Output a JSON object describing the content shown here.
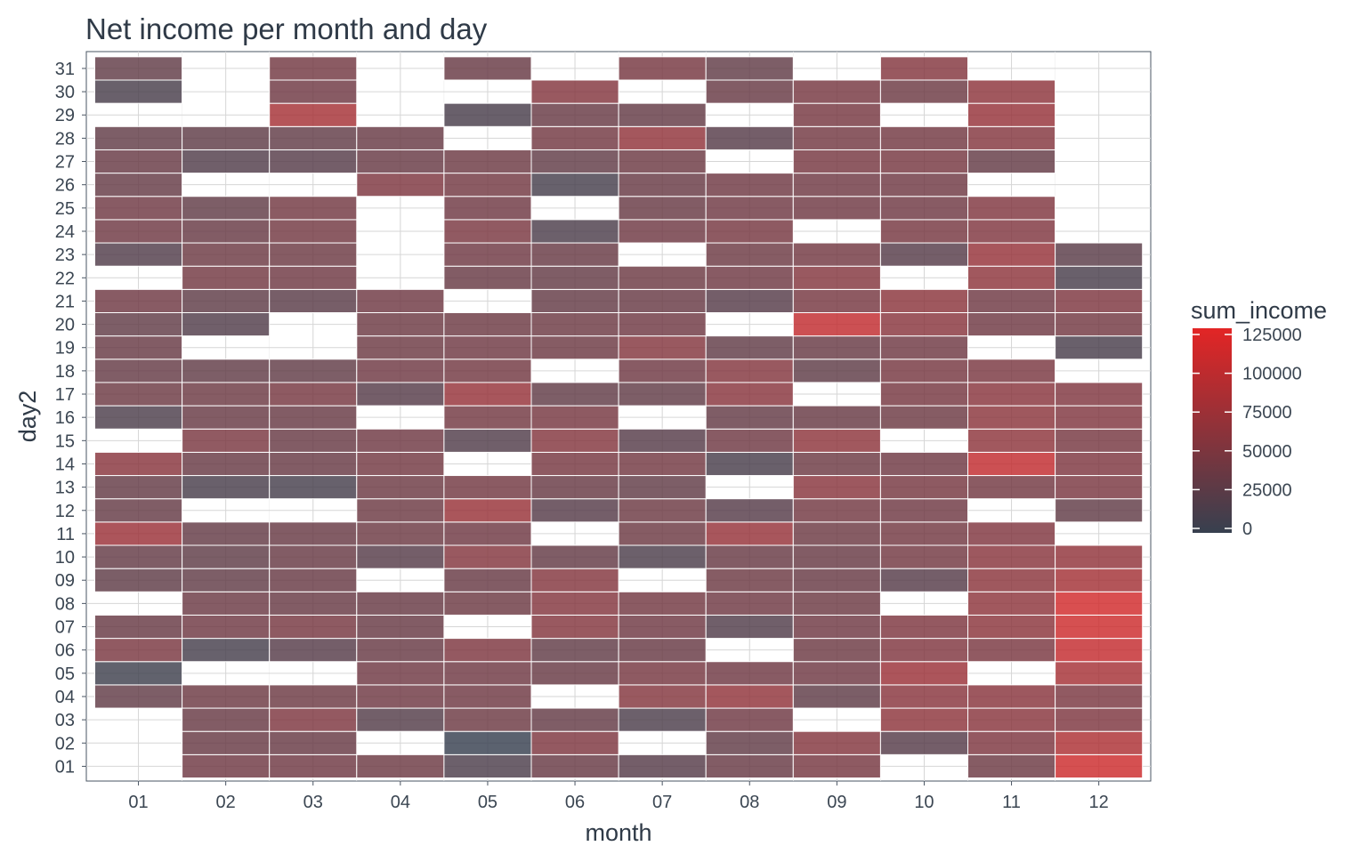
{
  "chart_data": {
    "type": "heatmap",
    "title": "Net income per month and day",
    "xlabel": "month",
    "ylabel": "day2",
    "x_categories": [
      "01",
      "02",
      "03",
      "04",
      "05",
      "06",
      "07",
      "08",
      "09",
      "10",
      "11",
      "12"
    ],
    "y_categories": [
      "01",
      "02",
      "03",
      "04",
      "05",
      "06",
      "07",
      "08",
      "09",
      "10",
      "11",
      "12",
      "13",
      "14",
      "15",
      "16",
      "17",
      "18",
      "19",
      "20",
      "21",
      "22",
      "23",
      "24",
      "25",
      "26",
      "27",
      "28",
      "29",
      "30",
      "31"
    ],
    "legend": {
      "title": "sum_income",
      "ticks": [
        0,
        25000,
        50000,
        75000,
        100000,
        125000
      ],
      "tick_labels": [
        "0",
        "25000",
        "50000",
        "75000",
        "100000",
        "125000"
      ],
      "range": [
        0,
        125000
      ],
      "low_color": "#37404f",
      "high_color": "#e32525",
      "placement": "right"
    },
    "grid": true,
    "values": {
      "01": {
        "04": 30000,
        "05": 5000,
        "06": 48000,
        "07": 35000,
        "09": 28000,
        "10": 32000,
        "11": 72000,
        "12": 33000,
        "13": 32000,
        "14": 58000,
        "16": 15000,
        "17": 38000,
        "18": 33000,
        "19": 35000,
        "20": 30000,
        "21": 40000,
        "23": 18000,
        "24": 40000,
        "25": 40000,
        "26": 33000,
        "27": 35000,
        "28": 30000,
        "30": 12000,
        "31": 30000
      },
      "02": {
        "01": 40000,
        "02": 35000,
        "03": 35000,
        "04": 38000,
        "06": 10000,
        "07": 40000,
        "08": 37000,
        "09": 30000,
        "10": 28000,
        "11": 32000,
        "13": 12000,
        "14": 35000,
        "15": 48000,
        "16": 35000,
        "17": 38000,
        "18": 30000,
        "20": 18000,
        "21": 28000,
        "22": 42000,
        "23": 38000,
        "24": 35000,
        "25": 30000,
        "27": 18000,
        "28": 28000
      },
      "03": {
        "01": 40000,
        "02": 35000,
        "03": 50000,
        "04": 38000,
        "06": 22000,
        "07": 45000,
        "08": 35000,
        "09": 35000,
        "10": 35000,
        "11": 35000,
        "13": 10000,
        "14": 35000,
        "15": 35000,
        "16": 35000,
        "17": 45000,
        "18": 30000,
        "21": 25000,
        "22": 40000,
        "23": 38000,
        "24": 42000,
        "25": 42000,
        "27": 22000,
        "28": 30000,
        "29": 80000,
        "30": 40000,
        "31": 42000
      },
      "04": {
        "01": 38000,
        "03": 20000,
        "04": 40000,
        "05": 40000,
        "06": 35000,
        "07": 35000,
        "08": 35000,
        "10": 22000,
        "11": 38000,
        "12": 38000,
        "13": 38000,
        "14": 42000,
        "15": 40000,
        "17": 22000,
        "18": 40000,
        "19": 38000,
        "20": 38000,
        "21": 40000,
        "26": 50000,
        "27": 35000,
        "28": 35000
      },
      "05": {
        "01": 15000,
        "02": 0,
        "03": 38000,
        "04": 40000,
        "05": 40000,
        "06": 50000,
        "08": 38000,
        "09": 35000,
        "10": 55000,
        "11": 40000,
        "12": 70000,
        "13": 42000,
        "15": 18000,
        "16": 42000,
        "17": 68000,
        "18": 42000,
        "19": 40000,
        "20": 38000,
        "22": 35000,
        "23": 40000,
        "24": 48000,
        "25": 40000,
        "26": 42000,
        "27": 38000,
        "29": 12000,
        "31": 35000
      },
      "06": {
        "01": 35000,
        "02": 50000,
        "03": 32000,
        "05": 35000,
        "06": 30000,
        "07": 55000,
        "08": 55000,
        "09": 55000,
        "10": 32000,
        "12": 22000,
        "13": 35000,
        "14": 45000,
        "15": 55000,
        "16": 45000,
        "17": 30000,
        "19": 38000,
        "20": 38000,
        "21": 32000,
        "22": 32000,
        "23": 35000,
        "24": 15000,
        "26": 10000,
        "27": 30000,
        "28": 42000,
        "29": 35000,
        "30": 55000
      },
      "07": {
        "01": 22000,
        "03": 15000,
        "04": 55000,
        "05": 45000,
        "06": 35000,
        "07": 40000,
        "08": 42000,
        "10": 15000,
        "11": 38000,
        "12": 38000,
        "13": 30000,
        "14": 42000,
        "15": 22000,
        "17": 30000,
        "18": 40000,
        "19": 55000,
        "20": 40000,
        "21": 35000,
        "22": 38000,
        "24": 40000,
        "25": 35000,
        "26": 35000,
        "27": 38000,
        "28": 65000,
        "29": 32000,
        "31": 45000
      },
      "08": {
        "01": 35000,
        "02": 30000,
        "03": 40000,
        "04": 65000,
        "05": 40000,
        "07": 18000,
        "08": 40000,
        "09": 38000,
        "10": 35000,
        "11": 68000,
        "12": 22000,
        "14": 12000,
        "15": 40000,
        "16": 32000,
        "17": 58000,
        "18": 55000,
        "19": 30000,
        "21": 22000,
        "22": 40000,
        "23": 38000,
        "24": 45000,
        "25": 40000,
        "26": 40000,
        "28": 22000,
        "30": 35000,
        "31": 30000
      },
      "09": {
        "01": 45000,
        "02": 55000,
        "04": 28000,
        "05": 40000,
        "06": 38000,
        "07": 40000,
        "08": 38000,
        "09": 35000,
        "10": 35000,
        "11": 38000,
        "12": 42000,
        "13": 58000,
        "14": 38000,
        "15": 62000,
        "16": 35000,
        "18": 28000,
        "19": 35000,
        "20": 100000,
        "21": 45000,
        "22": 55000,
        "23": 42000,
        "25": 40000,
        "26": 40000,
        "27": 45000,
        "28": 42000,
        "29": 45000,
        "30": 45000
      },
      "10": {
        "02": 22000,
        "03": 62000,
        "04": 58000,
        "05": 72000,
        "06": 52000,
        "07": 50000,
        "09": 22000,
        "10": 42000,
        "11": 42000,
        "12": 40000,
        "13": 45000,
        "14": 40000,
        "16": 38000,
        "17": 45000,
        "18": 45000,
        "19": 40000,
        "20": 58000,
        "21": 60000,
        "23": 22000,
        "24": 45000,
        "25": 40000,
        "26": 40000,
        "27": 45000,
        "28": 42000,
        "30": 38000,
        "31": 55000
      },
      "11": {
        "01": 38000,
        "02": 50000,
        "03": 58000,
        "04": 58000,
        "06": 48000,
        "07": 60000,
        "08": 62000,
        "09": 60000,
        "10": 58000,
        "11": 52000,
        "13": 42000,
        "14": 100000,
        "15": 62000,
        "16": 60000,
        "17": 58000,
        "18": 48000,
        "20": 40000,
        "21": 40000,
        "22": 62000,
        "23": 68000,
        "24": 52000,
        "25": 52000,
        "27": 32000,
        "28": 55000,
        "29": 68000,
        "30": 62000
      },
      "12": {
        "01": 108000,
        "02": 85000,
        "03": 50000,
        "04": 48000,
        "05": 80000,
        "06": 102000,
        "07": 108000,
        "08": 112000,
        "09": 78000,
        "10": 65000,
        "12": 30000,
        "13": 48000,
        "14": 50000,
        "15": 45000,
        "16": 52000,
        "17": 52000,
        "19": 12000,
        "20": 42000,
        "21": 50000,
        "22": 12000,
        "23": 25000
      }
    }
  }
}
